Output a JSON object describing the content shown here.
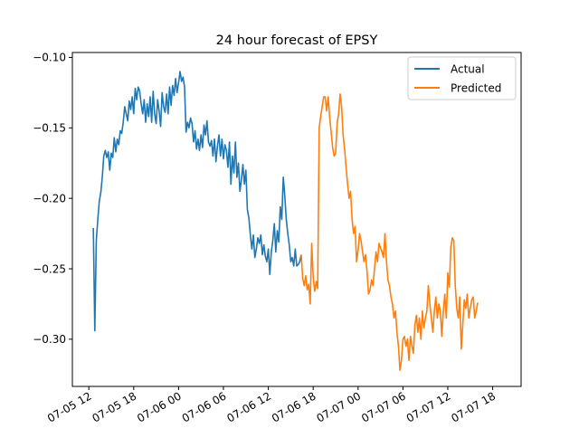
{
  "chart_data": {
    "type": "line",
    "title": "24 hour forecast of EPSY",
    "xlabel": "",
    "ylabel": "",
    "x_tick_labels": [
      "07-05 12",
      "07-05 18",
      "07-06 00",
      "07-06 06",
      "07-06 12",
      "07-06 18",
      "07-07 00",
      "07-07 06",
      "07-07 12",
      "07-07 18"
    ],
    "x_tick_hours": [
      0,
      6,
      12,
      18,
      24,
      30,
      36,
      42,
      48,
      54
    ],
    "xlim_hours": [
      -2.2,
      57.8
    ],
    "y_tick_labels": [
      "-0.30",
      "-0.25",
      "-0.20",
      "-0.15",
      "-0.10"
    ],
    "y_ticks": [
      -0.3,
      -0.25,
      -0.2,
      -0.15,
      -0.1
    ],
    "ylim": [
      -0.3335,
      -0.0965
    ],
    "grid": false,
    "legend": {
      "position": "top-right",
      "entries": [
        "Actual",
        "Predicted"
      ]
    },
    "colors": {
      "Actual": "#1f77b4",
      "Predicted": "#ff7f0e"
    },
    "series": [
      {
        "name": "Actual",
        "points": [
          [
            0.6,
            -0.221
          ],
          [
            0.8,
            -0.294
          ],
          [
            1.0,
            -0.23
          ],
          [
            1.2,
            -0.215
          ],
          [
            1.4,
            -0.202
          ],
          [
            1.6,
            -0.196
          ],
          [
            1.8,
            -0.185
          ],
          [
            2.0,
            -0.17
          ],
          [
            2.2,
            -0.166
          ],
          [
            2.4,
            -0.171
          ],
          [
            2.6,
            -0.167
          ],
          [
            2.8,
            -0.18
          ],
          [
            3.0,
            -0.168
          ],
          [
            3.2,
            -0.171
          ],
          [
            3.4,
            -0.157
          ],
          [
            3.6,
            -0.167
          ],
          [
            3.8,
            -0.158
          ],
          [
            4.0,
            -0.162
          ],
          [
            4.2,
            -0.152
          ],
          [
            4.4,
            -0.154
          ],
          [
            4.6,
            -0.146
          ],
          [
            4.8,
            -0.135
          ],
          [
            5.0,
            -0.14
          ],
          [
            5.2,
            -0.145
          ],
          [
            5.4,
            -0.131
          ],
          [
            5.6,
            -0.137
          ],
          [
            5.8,
            -0.128
          ],
          [
            6.0,
            -0.14
          ],
          [
            6.2,
            -0.122
          ],
          [
            6.4,
            -0.13
          ],
          [
            6.6,
            -0.121
          ],
          [
            6.8,
            -0.124
          ],
          [
            7.0,
            -0.133
          ],
          [
            7.2,
            -0.14
          ],
          [
            7.4,
            -0.13
          ],
          [
            7.6,
            -0.146
          ],
          [
            7.8,
            -0.133
          ],
          [
            8.0,
            -0.142
          ],
          [
            8.2,
            -0.128
          ],
          [
            8.4,
            -0.146
          ],
          [
            8.6,
            -0.124
          ],
          [
            8.8,
            -0.14
          ],
          [
            9.0,
            -0.147
          ],
          [
            9.2,
            -0.13
          ],
          [
            9.4,
            -0.138
          ],
          [
            9.6,
            -0.149
          ],
          [
            9.8,
            -0.125
          ],
          [
            10.0,
            -0.135
          ],
          [
            10.2,
            -0.139
          ],
          [
            10.4,
            -0.126
          ],
          [
            10.6,
            -0.14
          ],
          [
            10.8,
            -0.121
          ],
          [
            11.0,
            -0.134
          ],
          [
            11.2,
            -0.12
          ],
          [
            11.4,
            -0.127
          ],
          [
            11.6,
            -0.115
          ],
          [
            11.8,
            -0.125
          ],
          [
            12.0,
            -0.118
          ],
          [
            12.2,
            -0.11
          ],
          [
            12.4,
            -0.117
          ],
          [
            12.6,
            -0.114
          ],
          [
            12.8,
            -0.121
          ],
          [
            13.0,
            -0.153
          ],
          [
            13.2,
            -0.146
          ],
          [
            13.4,
            -0.15
          ],
          [
            13.6,
            -0.143
          ],
          [
            13.8,
            -0.147
          ],
          [
            14.0,
            -0.16
          ],
          [
            14.2,
            -0.152
          ],
          [
            14.4,
            -0.165
          ],
          [
            14.6,
            -0.158
          ],
          [
            14.8,
            -0.166
          ],
          [
            15.0,
            -0.155
          ],
          [
            15.2,
            -0.164
          ],
          [
            15.4,
            -0.148
          ],
          [
            15.6,
            -0.155
          ],
          [
            15.8,
            -0.145
          ],
          [
            16.0,
            -0.16
          ],
          [
            16.2,
            -0.163
          ],
          [
            16.4,
            -0.159
          ],
          [
            16.6,
            -0.17
          ],
          [
            16.8,
            -0.158
          ],
          [
            17.0,
            -0.174
          ],
          [
            17.2,
            -0.163
          ],
          [
            17.4,
            -0.155
          ],
          [
            17.6,
            -0.17
          ],
          [
            17.8,
            -0.158
          ],
          [
            18.0,
            -0.172
          ],
          [
            18.2,
            -0.162
          ],
          [
            18.4,
            -0.166
          ],
          [
            18.6,
            -0.178
          ],
          [
            18.8,
            -0.16
          ],
          [
            19.0,
            -0.19
          ],
          [
            19.2,
            -0.17
          ],
          [
            19.4,
            -0.182
          ],
          [
            19.6,
            -0.16
          ],
          [
            19.8,
            -0.185
          ],
          [
            20.0,
            -0.175
          ],
          [
            20.2,
            -0.195
          ],
          [
            20.4,
            -0.187
          ],
          [
            20.6,
            -0.176
          ],
          [
            20.8,
            -0.19
          ],
          [
            21.0,
            -0.18
          ],
          [
            21.2,
            -0.208
          ],
          [
            21.4,
            -0.214
          ],
          [
            21.6,
            -0.226
          ],
          [
            21.8,
            -0.236
          ],
          [
            22.0,
            -0.226
          ],
          [
            22.2,
            -0.242
          ],
          [
            22.4,
            -0.236
          ],
          [
            22.6,
            -0.228
          ],
          [
            22.8,
            -0.232
          ],
          [
            23.0,
            -0.226
          ],
          [
            23.2,
            -0.24
          ],
          [
            23.4,
            -0.233
          ],
          [
            23.6,
            -0.241
          ],
          [
            23.8,
            -0.245
          ],
          [
            24.0,
            -0.236
          ],
          [
            24.2,
            -0.254
          ],
          [
            24.4,
            -0.238
          ],
          [
            24.6,
            -0.23
          ],
          [
            24.8,
            -0.218
          ],
          [
            25.0,
            -0.238
          ],
          [
            25.2,
            -0.223
          ],
          [
            25.4,
            -0.231
          ],
          [
            25.6,
            -0.206
          ],
          [
            25.8,
            -0.215
          ],
          [
            26.0,
            -0.185
          ],
          [
            26.2,
            -0.198
          ],
          [
            26.4,
            -0.215
          ],
          [
            26.6,
            -0.225
          ],
          [
            26.8,
            -0.233
          ],
          [
            27.0,
            -0.245
          ],
          [
            27.2,
            -0.242
          ],
          [
            27.4,
            -0.248
          ],
          [
            27.6,
            -0.236
          ],
          [
            27.8,
            -0.248
          ],
          [
            28.0,
            -0.247
          ],
          [
            28.2,
            -0.245
          ],
          [
            28.4,
            -0.24
          ]
        ]
      },
      {
        "name": "Predicted",
        "points": [
          [
            28.4,
            -0.24
          ],
          [
            28.6,
            -0.257
          ],
          [
            28.8,
            -0.262
          ],
          [
            29.0,
            -0.255
          ],
          [
            29.2,
            -0.265
          ],
          [
            29.4,
            -0.261
          ],
          [
            29.6,
            -0.275
          ],
          [
            29.8,
            -0.232
          ],
          [
            30.0,
            -0.256
          ],
          [
            30.2,
            -0.266
          ],
          [
            30.4,
            -0.259
          ],
          [
            30.6,
            -0.264
          ],
          [
            30.8,
            -0.15
          ],
          [
            31.0,
            -0.142
          ],
          [
            31.2,
            -0.135
          ],
          [
            31.4,
            -0.128
          ],
          [
            31.6,
            -0.128
          ],
          [
            31.8,
            -0.138
          ],
          [
            32.0,
            -0.128
          ],
          [
            32.2,
            -0.142
          ],
          [
            32.4,
            -0.153
          ],
          [
            32.6,
            -0.164
          ],
          [
            32.8,
            -0.17
          ],
          [
            33.0,
            -0.168
          ],
          [
            33.2,
            -0.147
          ],
          [
            33.4,
            -0.14
          ],
          [
            33.6,
            -0.126
          ],
          [
            33.8,
            -0.135
          ],
          [
            34.0,
            -0.155
          ],
          [
            34.2,
            -0.165
          ],
          [
            34.4,
            -0.178
          ],
          [
            34.6,
            -0.19
          ],
          [
            34.8,
            -0.2
          ],
          [
            35.0,
            -0.195
          ],
          [
            35.2,
            -0.215
          ],
          [
            35.4,
            -0.225
          ],
          [
            35.6,
            -0.22
          ],
          [
            35.8,
            -0.245
          ],
          [
            36.0,
            -0.237
          ],
          [
            36.2,
            -0.225
          ],
          [
            36.4,
            -0.23
          ],
          [
            36.6,
            -0.238
          ],
          [
            36.8,
            -0.245
          ],
          [
            37.0,
            -0.24
          ],
          [
            37.2,
            -0.252
          ],
          [
            37.4,
            -0.268
          ],
          [
            37.6,
            -0.265
          ],
          [
            37.8,
            -0.258
          ],
          [
            38.0,
            -0.262
          ],
          [
            38.2,
            -0.25
          ],
          [
            38.4,
            -0.238
          ],
          [
            38.6,
            -0.245
          ],
          [
            38.8,
            -0.232
          ],
          [
            39.0,
            -0.235
          ],
          [
            39.2,
            -0.238
          ],
          [
            39.4,
            -0.242
          ],
          [
            39.6,
            -0.225
          ],
          [
            39.8,
            -0.245
          ],
          [
            40.0,
            -0.258
          ],
          [
            40.2,
            -0.262
          ],
          [
            40.4,
            -0.27
          ],
          [
            40.6,
            -0.275
          ],
          [
            40.8,
            -0.285
          ],
          [
            41.0,
            -0.28
          ],
          [
            41.2,
            -0.295
          ],
          [
            41.4,
            -0.305
          ],
          [
            41.6,
            -0.322
          ],
          [
            41.8,
            -0.315
          ],
          [
            42.0,
            -0.3
          ],
          [
            42.2,
            -0.298
          ],
          [
            42.4,
            -0.305
          ],
          [
            42.6,
            -0.3
          ],
          [
            42.8,
            -0.315
          ],
          [
            43.0,
            -0.298
          ],
          [
            43.2,
            -0.305
          ],
          [
            43.4,
            -0.31
          ],
          [
            43.6,
            -0.29
          ],
          [
            43.8,
            -0.283
          ],
          [
            44.0,
            -0.295
          ],
          [
            44.2,
            -0.285
          ],
          [
            44.4,
            -0.3
          ],
          [
            44.6,
            -0.28
          ],
          [
            44.8,
            -0.292
          ],
          [
            45.0,
            -0.285
          ],
          [
            45.2,
            -0.28
          ],
          [
            45.4,
            -0.262
          ],
          [
            45.6,
            -0.275
          ],
          [
            45.8,
            -0.285
          ],
          [
            46.0,
            -0.295
          ],
          [
            46.2,
            -0.28
          ],
          [
            46.4,
            -0.27
          ],
          [
            46.6,
            -0.285
          ],
          [
            46.8,
            -0.275
          ],
          [
            47.0,
            -0.28
          ],
          [
            47.2,
            -0.298
          ],
          [
            47.4,
            -0.28
          ],
          [
            47.6,
            -0.268
          ],
          [
            47.8,
            -0.285
          ],
          [
            48.0,
            -0.253
          ],
          [
            48.2,
            -0.263
          ],
          [
            48.4,
            -0.235
          ],
          [
            48.6,
            -0.228
          ],
          [
            48.8,
            -0.23
          ],
          [
            49.0,
            -0.262
          ],
          [
            49.2,
            -0.278
          ],
          [
            49.4,
            -0.285
          ],
          [
            49.6,
            -0.27
          ],
          [
            49.8,
            -0.307
          ],
          [
            50.0,
            -0.29
          ],
          [
            50.2,
            -0.272
          ],
          [
            50.4,
            -0.278
          ],
          [
            50.6,
            -0.268
          ],
          [
            50.8,
            -0.285
          ],
          [
            51.0,
            -0.278
          ],
          [
            51.2,
            -0.272
          ],
          [
            51.4,
            -0.27
          ],
          [
            51.6,
            -0.285
          ],
          [
            51.8,
            -0.28
          ],
          [
            52.0,
            -0.274
          ]
        ]
      }
    ]
  }
}
